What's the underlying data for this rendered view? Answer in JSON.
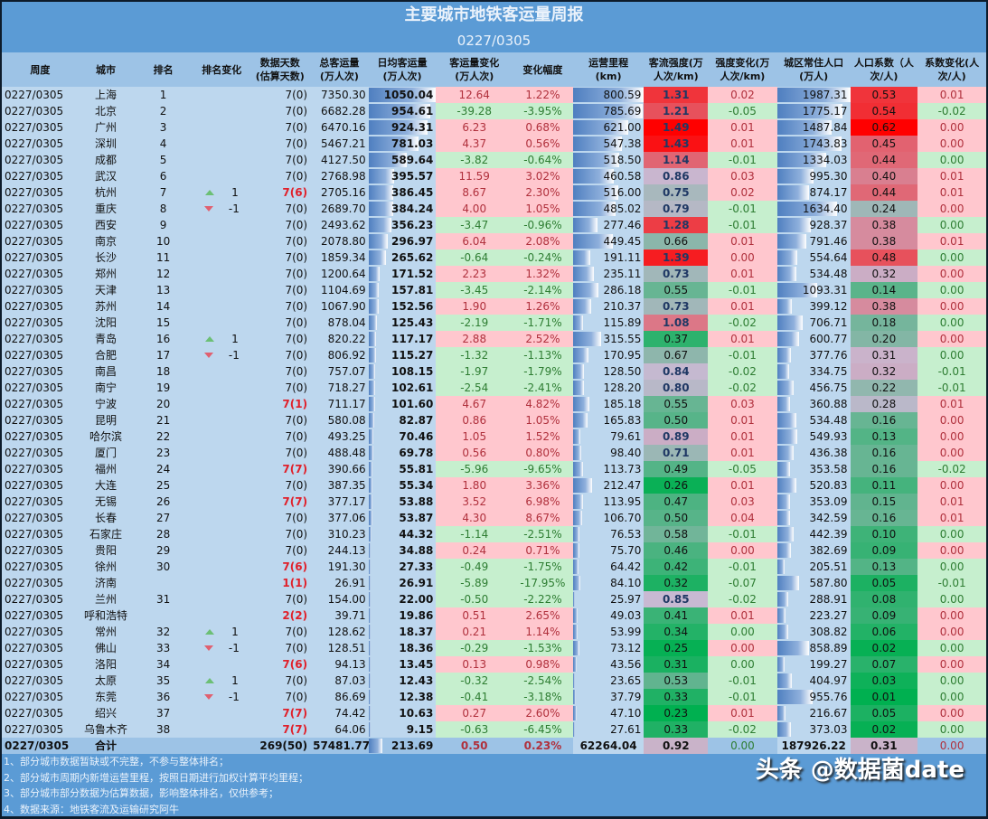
{
  "header": {
    "title": "主要城市地铁客运量周报",
    "period": "0227/0305"
  },
  "columns": [
    {
      "key": "week",
      "label": "周度"
    },
    {
      "key": "city",
      "label": "城市"
    },
    {
      "key": "rank",
      "label": "排名"
    },
    {
      "key": "rank_change",
      "label": "排名变化"
    },
    {
      "key": "days",
      "label": "数据天数\n(估算天数)"
    },
    {
      "key": "total",
      "label": "总客运量\n(万人次)"
    },
    {
      "key": "daily",
      "label": "日均客运量\n(万人次)"
    },
    {
      "key": "daily_change",
      "label": "客运量变化\n(万人次)"
    },
    {
      "key": "change_pct",
      "label": "变化幅度"
    },
    {
      "key": "mileage",
      "label": "运营里程\n(km)"
    },
    {
      "key": "intensity",
      "label": "客流强度(万\n人次/km)"
    },
    {
      "key": "intensity_change",
      "label": "强度变化(万\n人次/km)"
    },
    {
      "key": "population",
      "label": "城区常住人口\n(万人)"
    },
    {
      "key": "pop_coef",
      "label": "人口系数（人\n次/人)"
    },
    {
      "key": "coef_change",
      "label": "系数变化(人\n次/人)"
    }
  ],
  "colors": {
    "header_bg": "#5b9bd5",
    "column_header_bg": "#9dc3e6",
    "row_bg": "#bdd7ee",
    "positive_bg": "#ffc7ce",
    "negative_bg": "#c6efce",
    "bar": "#4f7fc0",
    "rank_up": "#6cbf75",
    "rank_down": "#e06070",
    "estimated_days": "#e0202a"
  },
  "rows": [
    {
      "week": "0227/0305",
      "city": "上海",
      "rank": "1",
      "dir": "",
      "rc": "",
      "days": "7(0)",
      "est": false,
      "total": "7350.30",
      "daily": "1050.04",
      "dc": "12.64",
      "pct": "1.22%",
      "km": "800.59",
      "int": "1.31",
      "ic": "0.02",
      "pop": "1987.31",
      "coef": "0.53",
      "cc": "0.01"
    },
    {
      "week": "0227/0305",
      "city": "北京",
      "rank": "2",
      "dir": "",
      "rc": "",
      "days": "7(0)",
      "est": false,
      "total": "6682.28",
      "daily": "954.61",
      "dc": "-39.28",
      "pct": "-3.95%",
      "km": "785.69",
      "int": "1.21",
      "ic": "-0.05",
      "pop": "1775.17",
      "coef": "0.54",
      "cc": "-0.02"
    },
    {
      "week": "0227/0305",
      "city": "广州",
      "rank": "3",
      "dir": "",
      "rc": "",
      "days": "7(0)",
      "est": false,
      "total": "6470.16",
      "daily": "924.31",
      "dc": "6.23",
      "pct": "0.68%",
      "km": "621.00",
      "int": "1.49",
      "ic": "0.01",
      "pop": "1487.84",
      "coef": "0.62",
      "cc": "0.00"
    },
    {
      "week": "0227/0305",
      "city": "深圳",
      "rank": "4",
      "dir": "",
      "rc": "",
      "days": "7(0)",
      "est": false,
      "total": "5467.21",
      "daily": "781.03",
      "dc": "4.37",
      "pct": "0.56%",
      "km": "547.38",
      "int": "1.43",
      "ic": "0.01",
      "pop": "1743.83",
      "coef": "0.45",
      "cc": "0.00"
    },
    {
      "week": "0227/0305",
      "city": "成都",
      "rank": "5",
      "dir": "",
      "rc": "",
      "days": "7(0)",
      "est": false,
      "total": "4127.50",
      "daily": "589.64",
      "dc": "-3.82",
      "pct": "-0.64%",
      "km": "518.50",
      "int": "1.14",
      "ic": "-0.01",
      "pop": "1334.03",
      "coef": "0.44",
      "cc": "0.00"
    },
    {
      "week": "0227/0305",
      "city": "武汉",
      "rank": "6",
      "dir": "",
      "rc": "",
      "days": "7(0)",
      "est": false,
      "total": "2768.98",
      "daily": "395.57",
      "dc": "11.59",
      "pct": "3.02%",
      "km": "460.58",
      "int": "0.86",
      "ic": "0.03",
      "pop": "995.30",
      "coef": "0.40",
      "cc": "0.01"
    },
    {
      "week": "0227/0305",
      "city": "杭州",
      "rank": "7",
      "dir": "up",
      "rc": "1",
      "days": "7(6)",
      "est": true,
      "total": "2705.16",
      "daily": "386.45",
      "dc": "8.67",
      "pct": "2.30%",
      "km": "516.00",
      "int": "0.75",
      "ic": "0.02",
      "pop": "874.17",
      "coef": "0.44",
      "cc": "0.01"
    },
    {
      "week": "0227/0305",
      "city": "重庆",
      "rank": "8",
      "dir": "down",
      "rc": "-1",
      "days": "7(0)",
      "est": false,
      "total": "2689.70",
      "daily": "384.24",
      "dc": "4.00",
      "pct": "1.05%",
      "km": "485.02",
      "int": "0.79",
      "ic": "-0.01",
      "pop": "1634.40",
      "coef": "0.24",
      "cc": "0.00"
    },
    {
      "week": "0227/0305",
      "city": "西安",
      "rank": "9",
      "dir": "",
      "rc": "",
      "days": "7(0)",
      "est": false,
      "total": "2493.62",
      "daily": "356.23",
      "dc": "-3.47",
      "pct": "-0.96%",
      "km": "277.46",
      "int": "1.28",
      "ic": "-0.01",
      "pop": "928.37",
      "coef": "0.38",
      "cc": "0.00"
    },
    {
      "week": "0227/0305",
      "city": "南京",
      "rank": "10",
      "dir": "",
      "rc": "",
      "days": "7(0)",
      "est": false,
      "total": "2078.80",
      "daily": "296.97",
      "dc": "6.04",
      "pct": "2.08%",
      "km": "449.45",
      "int": "0.66",
      "ic": "0.01",
      "pop": "791.46",
      "coef": "0.38",
      "cc": "0.01"
    },
    {
      "week": "0227/0305",
      "city": "长沙",
      "rank": "11",
      "dir": "",
      "rc": "",
      "days": "7(0)",
      "est": false,
      "total": "1859.34",
      "daily": "265.62",
      "dc": "-0.64",
      "pct": "-0.24%",
      "km": "191.11",
      "int": "1.39",
      "ic": "0.00",
      "pop": "554.64",
      "coef": "0.48",
      "cc": "0.00"
    },
    {
      "week": "0227/0305",
      "city": "郑州",
      "rank": "12",
      "dir": "",
      "rc": "",
      "days": "7(0)",
      "est": false,
      "total": "1200.64",
      "daily": "171.52",
      "dc": "2.23",
      "pct": "1.32%",
      "km": "235.11",
      "int": "0.73",
      "ic": "0.01",
      "pop": "534.48",
      "coef": "0.32",
      "cc": "0.00"
    },
    {
      "week": "0227/0305",
      "city": "天津",
      "rank": "13",
      "dir": "",
      "rc": "",
      "days": "7(0)",
      "est": false,
      "total": "1104.69",
      "daily": "157.81",
      "dc": "-3.45",
      "pct": "-2.14%",
      "km": "286.18",
      "int": "0.55",
      "ic": "-0.01",
      "pop": "1093.31",
      "coef": "0.14",
      "cc": "0.00"
    },
    {
      "week": "0227/0305",
      "city": "苏州",
      "rank": "14",
      "dir": "",
      "rc": "",
      "days": "7(0)",
      "est": false,
      "total": "1067.90",
      "daily": "152.56",
      "dc": "1.90",
      "pct": "1.26%",
      "km": "210.37",
      "int": "0.73",
      "ic": "0.01",
      "pop": "399.12",
      "coef": "0.38",
      "cc": "0.00"
    },
    {
      "week": "0227/0305",
      "city": "沈阳",
      "rank": "15",
      "dir": "",
      "rc": "",
      "days": "7(0)",
      "est": false,
      "total": "878.04",
      "daily": "125.43",
      "dc": "-2.19",
      "pct": "-1.71%",
      "km": "115.89",
      "int": "1.08",
      "ic": "-0.02",
      "pop": "706.71",
      "coef": "0.18",
      "cc": "0.00"
    },
    {
      "week": "0227/0305",
      "city": "青岛",
      "rank": "16",
      "dir": "up",
      "rc": "1",
      "days": "7(0)",
      "est": false,
      "total": "820.22",
      "daily": "117.17",
      "dc": "2.88",
      "pct": "2.52%",
      "km": "315.55",
      "int": "0.37",
      "ic": "0.01",
      "pop": "600.77",
      "coef": "0.20",
      "cc": "0.00"
    },
    {
      "week": "0227/0305",
      "city": "合肥",
      "rank": "17",
      "dir": "down",
      "rc": "-1",
      "days": "7(0)",
      "est": false,
      "total": "806.92",
      "daily": "115.27",
      "dc": "-1.32",
      "pct": "-1.13%",
      "km": "170.95",
      "int": "0.67",
      "ic": "-0.01",
      "pop": "377.76",
      "coef": "0.31",
      "cc": "0.00"
    },
    {
      "week": "0227/0305",
      "city": "南昌",
      "rank": "18",
      "dir": "",
      "rc": "",
      "days": "7(0)",
      "est": false,
      "total": "757.07",
      "daily": "108.15",
      "dc": "-1.97",
      "pct": "-1.79%",
      "km": "128.50",
      "int": "0.84",
      "ic": "-0.02",
      "pop": "334.75",
      "coef": "0.32",
      "cc": "-0.01"
    },
    {
      "week": "0227/0305",
      "city": "南宁",
      "rank": "19",
      "dir": "",
      "rc": "",
      "days": "7(0)",
      "est": false,
      "total": "718.27",
      "daily": "102.61",
      "dc": "-2.54",
      "pct": "-2.41%",
      "km": "128.20",
      "int": "0.80",
      "ic": "-0.02",
      "pop": "456.75",
      "coef": "0.22",
      "cc": "-0.01"
    },
    {
      "week": "0227/0305",
      "city": "宁波",
      "rank": "20",
      "dir": "",
      "rc": "",
      "days": "7(1)",
      "est": true,
      "total": "711.17",
      "daily": "101.60",
      "dc": "4.67",
      "pct": "4.82%",
      "km": "185.18",
      "int": "0.55",
      "ic": "0.03",
      "pop": "360.88",
      "coef": "0.28",
      "cc": "0.01"
    },
    {
      "week": "0227/0305",
      "city": "昆明",
      "rank": "21",
      "dir": "",
      "rc": "",
      "days": "7(0)",
      "est": false,
      "total": "580.08",
      "daily": "82.87",
      "dc": "0.86",
      "pct": "1.05%",
      "km": "165.83",
      "int": "0.50",
      "ic": "0.01",
      "pop": "534.48",
      "coef": "0.16",
      "cc": "0.00"
    },
    {
      "week": "0227/0305",
      "city": "哈尔滨",
      "rank": "22",
      "dir": "",
      "rc": "",
      "days": "7(0)",
      "est": false,
      "total": "493.25",
      "daily": "70.46",
      "dc": "1.05",
      "pct": "1.52%",
      "km": "79.61",
      "int": "0.89",
      "ic": "0.01",
      "pop": "549.93",
      "coef": "0.13",
      "cc": "0.00"
    },
    {
      "week": "0227/0305",
      "city": "厦门",
      "rank": "23",
      "dir": "",
      "rc": "",
      "days": "7(0)",
      "est": false,
      "total": "488.48",
      "daily": "69.78",
      "dc": "0.56",
      "pct": "0.80%",
      "km": "98.40",
      "int": "0.71",
      "ic": "0.01",
      "pop": "436.38",
      "coef": "0.16",
      "cc": "0.00"
    },
    {
      "week": "0227/0305",
      "city": "福州",
      "rank": "24",
      "dir": "",
      "rc": "",
      "days": "7(7)",
      "est": true,
      "total": "390.66",
      "daily": "55.81",
      "dc": "-5.96",
      "pct": "-9.65%",
      "km": "113.73",
      "int": "0.49",
      "ic": "-0.05",
      "pop": "353.58",
      "coef": "0.16",
      "cc": "-0.02"
    },
    {
      "week": "0227/0305",
      "city": "大连",
      "rank": "25",
      "dir": "",
      "rc": "",
      "days": "7(0)",
      "est": false,
      "total": "387.35",
      "daily": "55.34",
      "dc": "1.80",
      "pct": "3.36%",
      "km": "212.47",
      "int": "0.26",
      "ic": "0.01",
      "pop": "520.83",
      "coef": "0.11",
      "cc": "0.00"
    },
    {
      "week": "0227/0305",
      "city": "无锡",
      "rank": "26",
      "dir": "",
      "rc": "",
      "days": "7(7)",
      "est": true,
      "total": "377.17",
      "daily": "53.88",
      "dc": "3.52",
      "pct": "6.98%",
      "km": "113.95",
      "int": "0.47",
      "ic": "0.03",
      "pop": "353.09",
      "coef": "0.15",
      "cc": "0.01"
    },
    {
      "week": "0227/0305",
      "city": "长春",
      "rank": "27",
      "dir": "",
      "rc": "",
      "days": "7(0)",
      "est": false,
      "total": "377.06",
      "daily": "53.87",
      "dc": "4.30",
      "pct": "8.67%",
      "km": "106.70",
      "int": "0.50",
      "ic": "0.04",
      "pop": "342.59",
      "coef": "0.16",
      "cc": "0.01"
    },
    {
      "week": "0227/0305",
      "city": "石家庄",
      "rank": "28",
      "dir": "",
      "rc": "",
      "days": "7(0)",
      "est": false,
      "total": "310.23",
      "daily": "44.32",
      "dc": "-1.14",
      "pct": "-2.51%",
      "km": "76.53",
      "int": "0.58",
      "ic": "-0.01",
      "pop": "442.39",
      "coef": "0.10",
      "cc": "0.00"
    },
    {
      "week": "0227/0305",
      "city": "贵阳",
      "rank": "29",
      "dir": "",
      "rc": "",
      "days": "7(0)",
      "est": false,
      "total": "244.13",
      "daily": "34.88",
      "dc": "0.24",
      "pct": "0.71%",
      "km": "75.70",
      "int": "0.46",
      "ic": "0.00",
      "pop": "382.69",
      "coef": "0.09",
      "cc": "0.00"
    },
    {
      "week": "0227/0305",
      "city": "徐州",
      "rank": "30",
      "dir": "",
      "rc": "",
      "days": "7(6)",
      "est": true,
      "total": "191.30",
      "daily": "27.33",
      "dc": "-0.49",
      "pct": "-1.75%",
      "km": "64.42",
      "int": "0.42",
      "ic": "-0.01",
      "pop": "205.51",
      "coef": "0.13",
      "cc": "0.00"
    },
    {
      "week": "0227/0305",
      "city": "济南",
      "rank": "",
      "dir": "",
      "rc": "",
      "days": "1(1)",
      "est": true,
      "total": "26.91",
      "daily": "26.91",
      "dc": "-5.89",
      "pct": "-17.95%",
      "km": "84.10",
      "int": "0.32",
      "ic": "-0.07",
      "pop": "587.80",
      "coef": "0.05",
      "cc": "-0.01"
    },
    {
      "week": "0227/0305",
      "city": "兰州",
      "rank": "31",
      "dir": "",
      "rc": "",
      "days": "7(0)",
      "est": false,
      "total": "154.00",
      "daily": "22.00",
      "dc": "-0.50",
      "pct": "-2.22%",
      "km": "25.97",
      "int": "0.85",
      "ic": "-0.02",
      "pop": "288.91",
      "coef": "0.08",
      "cc": "0.00"
    },
    {
      "week": "0227/0305",
      "city": "呼和浩特",
      "rank": "",
      "dir": "",
      "rc": "",
      "days": "2(2)",
      "est": true,
      "total": "39.71",
      "daily": "19.86",
      "dc": "0.51",
      "pct": "2.65%",
      "km": "49.03",
      "int": "0.41",
      "ic": "0.01",
      "pop": "223.27",
      "coef": "0.09",
      "cc": "0.00"
    },
    {
      "week": "0227/0305",
      "city": "常州",
      "rank": "32",
      "dir": "up",
      "rc": "1",
      "days": "7(0)",
      "est": false,
      "total": "128.62",
      "daily": "18.37",
      "dc": "0.21",
      "pct": "1.14%",
      "km": "53.99",
      "int": "0.34",
      "ic": "0.00",
      "pop": "308.82",
      "coef": "0.06",
      "cc": "0.00"
    },
    {
      "week": "0227/0305",
      "city": "佛山",
      "rank": "33",
      "dir": "down",
      "rc": "-1",
      "days": "7(0)",
      "est": false,
      "total": "128.51",
      "daily": "18.36",
      "dc": "-0.29",
      "pct": "-1.53%",
      "km": "73.12",
      "int": "0.25",
      "ic": "0.00",
      "pop": "858.89",
      "coef": "0.02",
      "cc": "0.00"
    },
    {
      "week": "0227/0305",
      "city": "洛阳",
      "rank": "34",
      "dir": "",
      "rc": "",
      "days": "7(6)",
      "est": true,
      "total": "94.13",
      "daily": "13.45",
      "dc": "0.13",
      "pct": "0.98%",
      "km": "43.56",
      "int": "0.31",
      "ic": "0.00",
      "pop": "199.27",
      "coef": "0.07",
      "cc": "0.00"
    },
    {
      "week": "0227/0305",
      "city": "太原",
      "rank": "35",
      "dir": "up",
      "rc": "1",
      "days": "7(0)",
      "est": false,
      "total": "87.03",
      "daily": "12.43",
      "dc": "-0.32",
      "pct": "-2.54%",
      "km": "23.65",
      "int": "0.53",
      "ic": "-0.01",
      "pop": "404.97",
      "coef": "0.03",
      "cc": "0.00"
    },
    {
      "week": "0227/0305",
      "city": "东莞",
      "rank": "36",
      "dir": "down",
      "rc": "-1",
      "days": "7(0)",
      "est": false,
      "total": "86.69",
      "daily": "12.38",
      "dc": "-0.41",
      "pct": "-3.18%",
      "km": "37.79",
      "int": "0.33",
      "ic": "-0.01",
      "pop": "955.76",
      "coef": "0.01",
      "cc": "0.00"
    },
    {
      "week": "0227/0305",
      "city": "绍兴",
      "rank": "37",
      "dir": "",
      "rc": "",
      "days": "7(7)",
      "est": true,
      "total": "74.42",
      "daily": "10.63",
      "dc": "0.27",
      "pct": "2.60%",
      "km": "47.10",
      "int": "0.23",
      "ic": "0.01",
      "pop": "216.67",
      "coef": "0.05",
      "cc": "0.00"
    },
    {
      "week": "0227/0305",
      "city": "乌鲁木齐",
      "rank": "38",
      "dir": "",
      "rc": "",
      "days": "7(7)",
      "est": true,
      "total": "64.06",
      "daily": "9.15",
      "dc": "-0.63",
      "pct": "-6.45%",
      "km": "27.61",
      "int": "0.33",
      "ic": "-0.02",
      "pop": "373.03",
      "coef": "0.02",
      "cc": "0.00"
    }
  ],
  "total": {
    "week": "0227/0305",
    "city": "合计",
    "days": "269(50)",
    "total": "57481.77",
    "daily": "213.69",
    "dc": "0.50",
    "pct": "0.23%",
    "km": "62264.04",
    "int": "0.92",
    "ic": "0.00",
    "pop": "187926.22",
    "coef": "0.31",
    "cc": "0.00"
  },
  "notes": [
    "1、部分城市数据暂缺或不完整，不参与整体排名；",
    "2、部分城市周期内新增运营里程，按照日期进行加权计算平均里程；",
    "3、部分城市部分数据为估算数据，影响整体排名，仅供参考；",
    "4、数据来源：地铁客流及运输研究阿牛"
  ],
  "watermark": "头条 @数据菌date"
}
